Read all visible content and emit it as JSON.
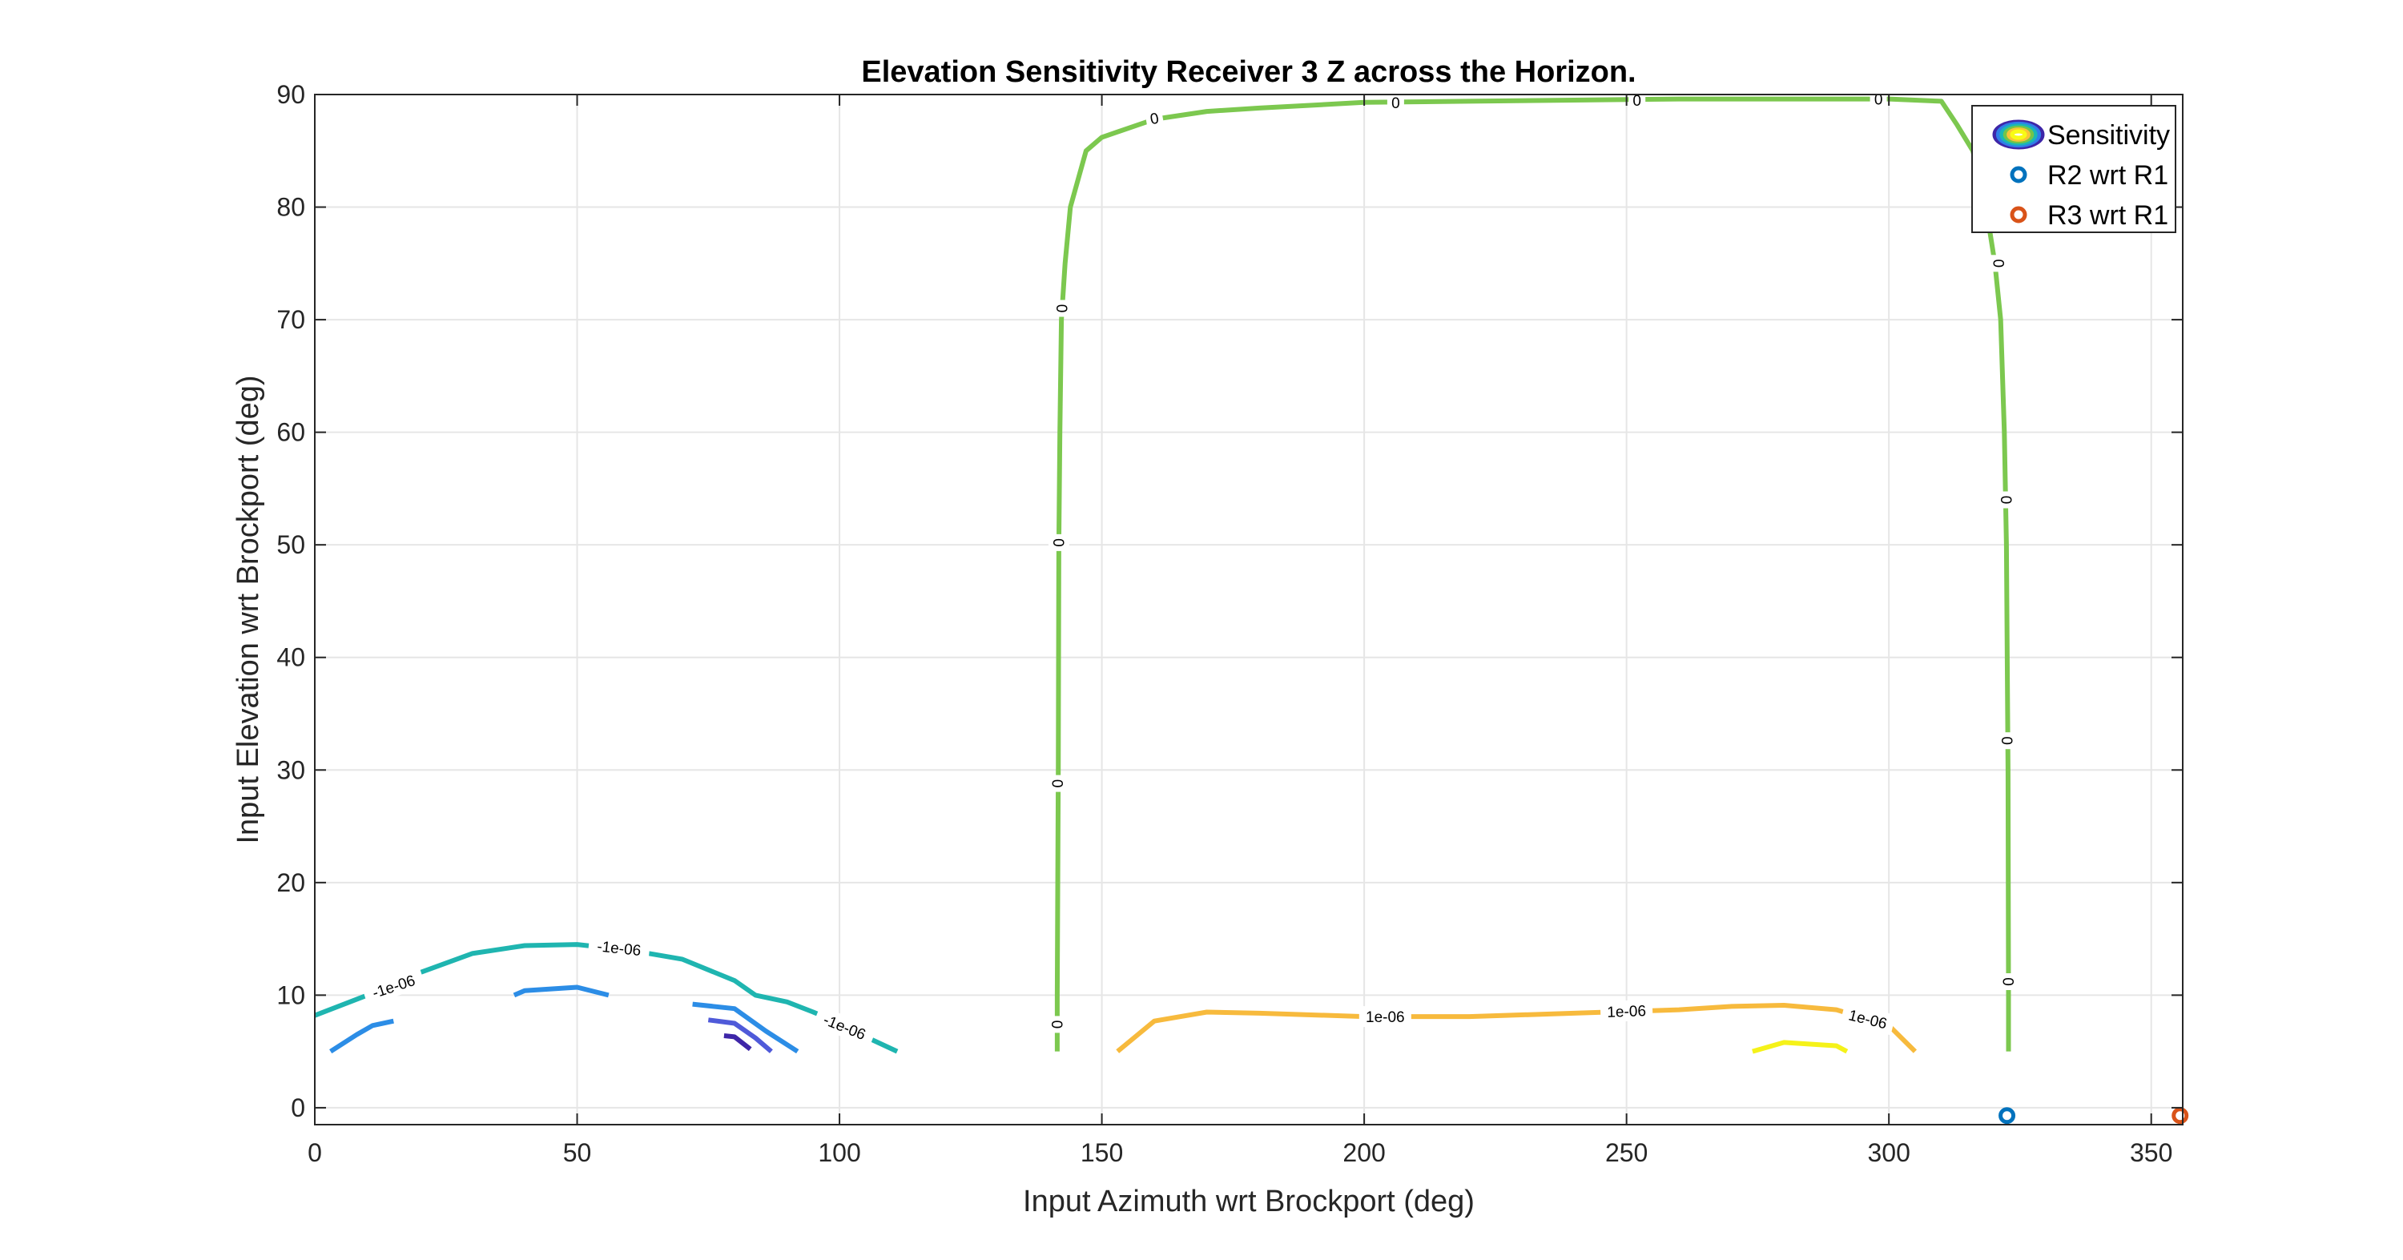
{
  "chart_data": {
    "type": "contour",
    "title": "Elevation Sensitivity Receiver 3 Z across the Horizon.",
    "xlabel": "Input Azimuth wrt Brockport (deg)",
    "ylabel": "Input Elevation wrt Brockport (deg)",
    "xlim": [
      0,
      356
    ],
    "ylim": [
      -1.5,
      90
    ],
    "xticks": [
      0,
      50,
      100,
      150,
      200,
      250,
      300,
      350
    ],
    "yticks": [
      0,
      10,
      20,
      30,
      40,
      50,
      60,
      70,
      80,
      90
    ],
    "grid": true,
    "legend": {
      "placement": "top-right",
      "entries": [
        {
          "label": "Sensitivity",
          "kind": "contour",
          "colors": [
            "#3e26a8",
            "#2f7ee8",
            "#1ab7b5",
            "#72c54a",
            "#f9c435",
            "#f9fb15"
          ]
        },
        {
          "label": "R2 wrt R1",
          "kind": "marker",
          "color": "#0072bd"
        },
        {
          "label": "R3 wrt R1",
          "kind": "marker",
          "color": "#d95319"
        }
      ]
    },
    "contours": [
      {
        "level": "-1e-06",
        "color": "#1fb5b0",
        "points": [
          [
            0,
            8.2
          ],
          [
            10,
            10
          ],
          [
            20,
            12
          ],
          [
            30,
            13.7
          ],
          [
            40,
            14.4
          ],
          [
            50,
            14.5
          ],
          [
            60,
            14
          ],
          [
            70,
            13.2
          ],
          [
            80,
            11.3
          ],
          [
            84,
            10
          ],
          [
            90,
            9.4
          ],
          [
            95,
            8.5
          ],
          [
            100,
            7.5
          ],
          [
            105,
            6.3
          ],
          [
            111,
            5
          ]
        ],
        "labels": [
          {
            "x": 15,
            "y": 10.8,
            "text": "-1e-06",
            "angle": -18
          },
          {
            "x": 58,
            "y": 14.2,
            "text": "-1e-06",
            "angle": 6
          },
          {
            "x": 101,
            "y": 7.2,
            "text": "-1e-06",
            "angle": 22
          }
        ]
      },
      {
        "level": "-2e-06",
        "color": "#2c8de6",
        "points": [
          [
            3,
            5
          ],
          [
            8,
            6.5
          ],
          [
            11,
            7.3
          ],
          [
            15,
            7.7
          ]
        ],
        "labels": []
      },
      {
        "level": "-2e-06",
        "color": "#2c8de6",
        "points": [
          [
            38,
            10
          ],
          [
            40,
            10.4
          ],
          [
            50,
            10.7
          ],
          [
            56,
            10
          ]
        ],
        "labels": []
      },
      {
        "level": "-2e-06",
        "color": "#2c8de6",
        "points": [
          [
            72,
            9.2
          ],
          [
            80,
            8.8
          ],
          [
            86,
            6.8
          ],
          [
            92,
            5
          ]
        ],
        "labels": []
      },
      {
        "level": "-3e-06",
        "color": "#4f5ad9",
        "points": [
          [
            75,
            7.8
          ],
          [
            80,
            7.5
          ],
          [
            84,
            6.2
          ],
          [
            87,
            5
          ]
        ],
        "labels": []
      },
      {
        "level": "-4e-06",
        "color": "#3e26a8",
        "points": [
          [
            78,
            6.4
          ],
          [
            80,
            6.3
          ],
          [
            83,
            5.2
          ]
        ],
        "labels": []
      },
      {
        "level": "0",
        "color": "#7cc84f",
        "points": [
          [
            141.5,
            5
          ],
          [
            141.5,
            10
          ],
          [
            141.7,
            30
          ],
          [
            141.8,
            50
          ],
          [
            142,
            60
          ],
          [
            142.3,
            70
          ],
          [
            143,
            75
          ],
          [
            144,
            80
          ],
          [
            147,
            85
          ],
          [
            150,
            86.2
          ],
          [
            160,
            87.8
          ],
          [
            170,
            88.5
          ],
          [
            180,
            88.8
          ],
          [
            200,
            89.3
          ],
          [
            220,
            89.4
          ],
          [
            240,
            89.5
          ],
          [
            260,
            89.6
          ],
          [
            280,
            89.6
          ],
          [
            300,
            89.6
          ],
          [
            310,
            89.4
          ],
          [
            313,
            87.3
          ],
          [
            316,
            85
          ],
          [
            318.5,
            80
          ],
          [
            320.2,
            75
          ],
          [
            321.3,
            70
          ],
          [
            322,
            60
          ],
          [
            322.4,
            50
          ],
          [
            322.7,
            30
          ],
          [
            322.8,
            10
          ],
          [
            322.8,
            5
          ]
        ],
        "labels": [
          {
            "x": 141.5,
            "y": 7.4,
            "text": "0",
            "angle": 90
          },
          {
            "x": 141.6,
            "y": 28.8,
            "text": "0",
            "angle": 90
          },
          {
            "x": 141.8,
            "y": 50.2,
            "text": "0",
            "angle": 90
          },
          {
            "x": 142.4,
            "y": 71,
            "text": "0",
            "angle": 90
          },
          {
            "x": 160,
            "y": 87.9,
            "text": "0",
            "angle": -10
          },
          {
            "x": 206,
            "y": 89.3,
            "text": "0",
            "angle": 0
          },
          {
            "x": 252,
            "y": 89.5,
            "text": "0",
            "angle": 0
          },
          {
            "x": 298,
            "y": 89.6,
            "text": "0",
            "angle": 0
          },
          {
            "x": 321,
            "y": 75,
            "text": "0",
            "angle": 90
          },
          {
            "x": 322.4,
            "y": 54,
            "text": "0",
            "angle": 90
          },
          {
            "x": 322.6,
            "y": 32.6,
            "text": "0",
            "angle": 90
          },
          {
            "x": 322.8,
            "y": 11.2,
            "text": "0",
            "angle": 90
          }
        ]
      },
      {
        "level": "1e-06",
        "color": "#f7ba3d",
        "points": [
          [
            153,
            5
          ],
          [
            160,
            7.7
          ],
          [
            170,
            8.5
          ],
          [
            180,
            8.4
          ],
          [
            200,
            8.1
          ],
          [
            220,
            8.1
          ],
          [
            240,
            8.4
          ],
          [
            260,
            8.7
          ],
          [
            270,
            9
          ],
          [
            280,
            9.1
          ],
          [
            290,
            8.7
          ],
          [
            300,
            7.3
          ],
          [
            305,
            5
          ]
        ],
        "labels": [
          {
            "x": 204,
            "y": 8.1,
            "text": "1e-06",
            "angle": 0
          },
          {
            "x": 250,
            "y": 8.6,
            "text": "1e-06",
            "angle": -2
          },
          {
            "x": 296,
            "y": 7.9,
            "text": "1e-06",
            "angle": 14
          }
        ]
      },
      {
        "level": "2e-06",
        "color": "#f5f219",
        "points": [
          [
            274,
            5
          ],
          [
            280,
            5.8
          ],
          [
            290,
            5.5
          ],
          [
            292,
            5
          ]
        ],
        "labels": []
      }
    ],
    "markers": [
      {
        "series": "R2 wrt R1",
        "x": 322.5,
        "y": -0.7,
        "color": "#0072bd"
      },
      {
        "series": "R3 wrt R1",
        "x": 355.5,
        "y": -0.7,
        "color": "#d95319"
      }
    ]
  }
}
